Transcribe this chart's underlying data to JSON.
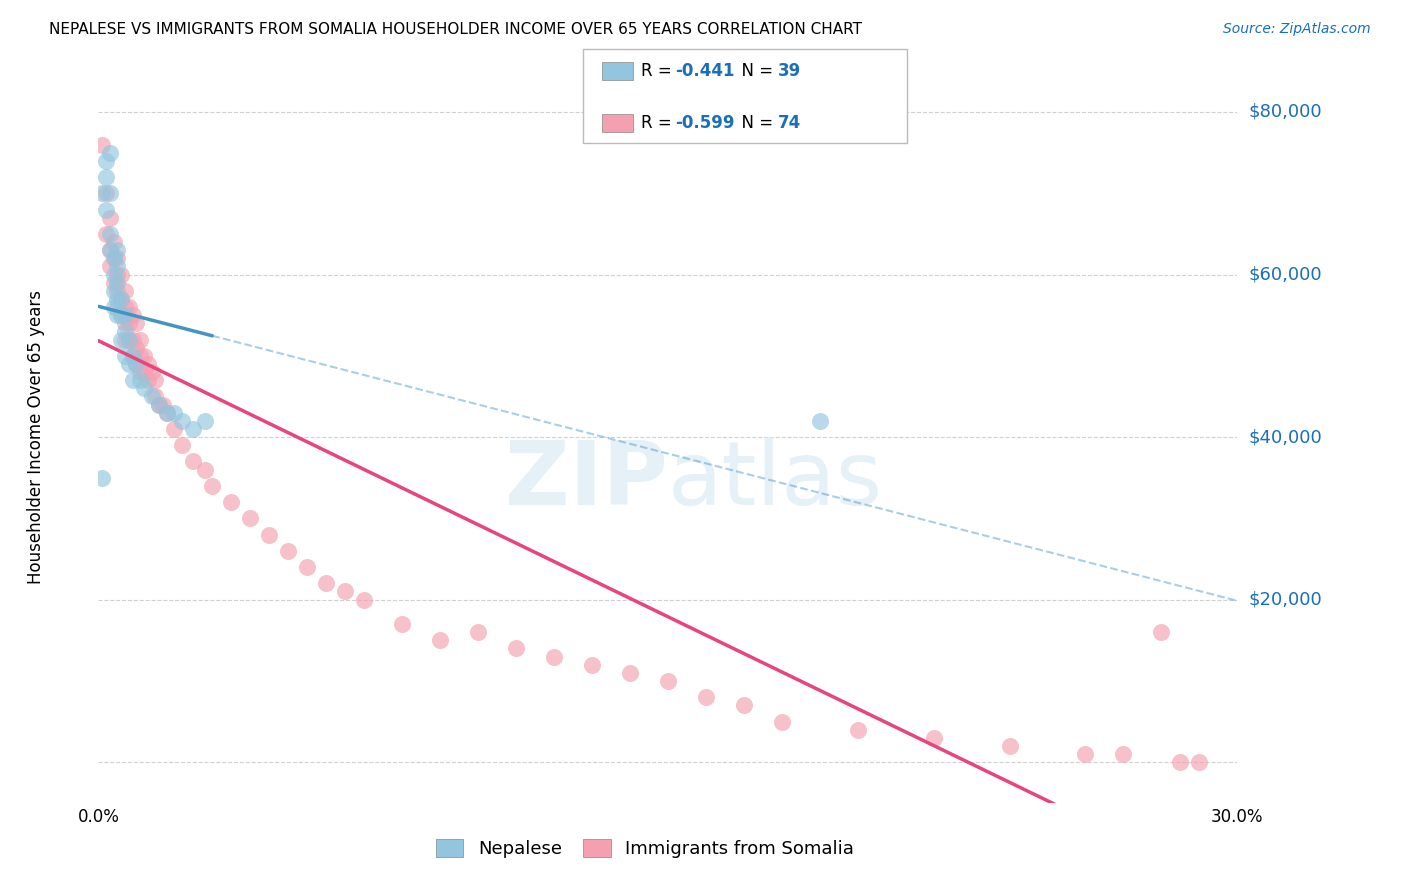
{
  "title": "NEPALESE VS IMMIGRANTS FROM SOMALIA HOUSEHOLDER INCOME OVER 65 YEARS CORRELATION CHART",
  "source": "Source: ZipAtlas.com",
  "ylabel": "Householder Income Over 65 years",
  "xlim": [
    0.0,
    0.3
  ],
  "ylim": [
    -5000,
    85000
  ],
  "yticks": [
    0,
    20000,
    40000,
    60000,
    80000
  ],
  "xticks": [
    0.0,
    0.05,
    0.1,
    0.15,
    0.2,
    0.25,
    0.3
  ],
  "xtick_labels": [
    "0.0%",
    "",
    "",
    "",
    "",
    "",
    "30.0%"
  ],
  "legend_label1": "Nepalese",
  "legend_label2": "Immigrants from Somalia",
  "r1": -0.441,
  "n1": 39,
  "r2": -0.599,
  "n2": 74,
  "color1": "#92c5de",
  "color2": "#f4a0b0",
  "line_color1": "#4393c3",
  "line_color2": "#e8457a",
  "background_color": "#ffffff",
  "grid_color": "#cccccc",
  "nepal_x": [
    0.001,
    0.001,
    0.002,
    0.002,
    0.002,
    0.003,
    0.003,
    0.003,
    0.003,
    0.004,
    0.004,
    0.004,
    0.004,
    0.005,
    0.005,
    0.005,
    0.005,
    0.005,
    0.006,
    0.006,
    0.006,
    0.007,
    0.007,
    0.007,
    0.008,
    0.008,
    0.009,
    0.009,
    0.01,
    0.011,
    0.012,
    0.014,
    0.016,
    0.018,
    0.02,
    0.022,
    0.025,
    0.028,
    0.19
  ],
  "nepal_y": [
    35000,
    70000,
    72000,
    68000,
    74000,
    70000,
    65000,
    63000,
    75000,
    62000,
    60000,
    58000,
    56000,
    63000,
    61000,
    59000,
    57000,
    55000,
    57000,
    55000,
    52000,
    55000,
    53000,
    50000,
    52000,
    49000,
    50000,
    47000,
    49000,
    47000,
    46000,
    45000,
    44000,
    43000,
    43000,
    42000,
    41000,
    42000,
    42000
  ],
  "somalia_x": [
    0.001,
    0.002,
    0.002,
    0.003,
    0.003,
    0.003,
    0.004,
    0.004,
    0.004,
    0.005,
    0.005,
    0.005,
    0.005,
    0.006,
    0.006,
    0.006,
    0.007,
    0.007,
    0.007,
    0.007,
    0.008,
    0.008,
    0.008,
    0.009,
    0.009,
    0.009,
    0.01,
    0.01,
    0.01,
    0.011,
    0.011,
    0.011,
    0.012,
    0.012,
    0.013,
    0.013,
    0.014,
    0.015,
    0.015,
    0.016,
    0.017,
    0.018,
    0.02,
    0.022,
    0.025,
    0.028,
    0.03,
    0.035,
    0.04,
    0.045,
    0.05,
    0.055,
    0.06,
    0.065,
    0.07,
    0.08,
    0.09,
    0.1,
    0.11,
    0.12,
    0.13,
    0.14,
    0.15,
    0.16,
    0.17,
    0.18,
    0.2,
    0.22,
    0.24,
    0.26,
    0.27,
    0.28,
    0.285,
    0.29
  ],
  "somalia_y": [
    76000,
    70000,
    65000,
    67000,
    63000,
    61000,
    64000,
    62000,
    59000,
    62000,
    60000,
    58000,
    56000,
    60000,
    57000,
    55000,
    58000,
    56000,
    54000,
    52000,
    56000,
    54000,
    52000,
    55000,
    52000,
    50000,
    54000,
    51000,
    49000,
    52000,
    50000,
    48000,
    50000,
    48000,
    49000,
    47000,
    48000,
    47000,
    45000,
    44000,
    44000,
    43000,
    41000,
    39000,
    37000,
    36000,
    34000,
    32000,
    30000,
    28000,
    26000,
    24000,
    22000,
    21000,
    20000,
    17000,
    15000,
    16000,
    14000,
    13000,
    12000,
    11000,
    10000,
    8000,
    7000,
    5000,
    4000,
    3000,
    2000,
    1000,
    1000,
    16000,
    0,
    0
  ]
}
